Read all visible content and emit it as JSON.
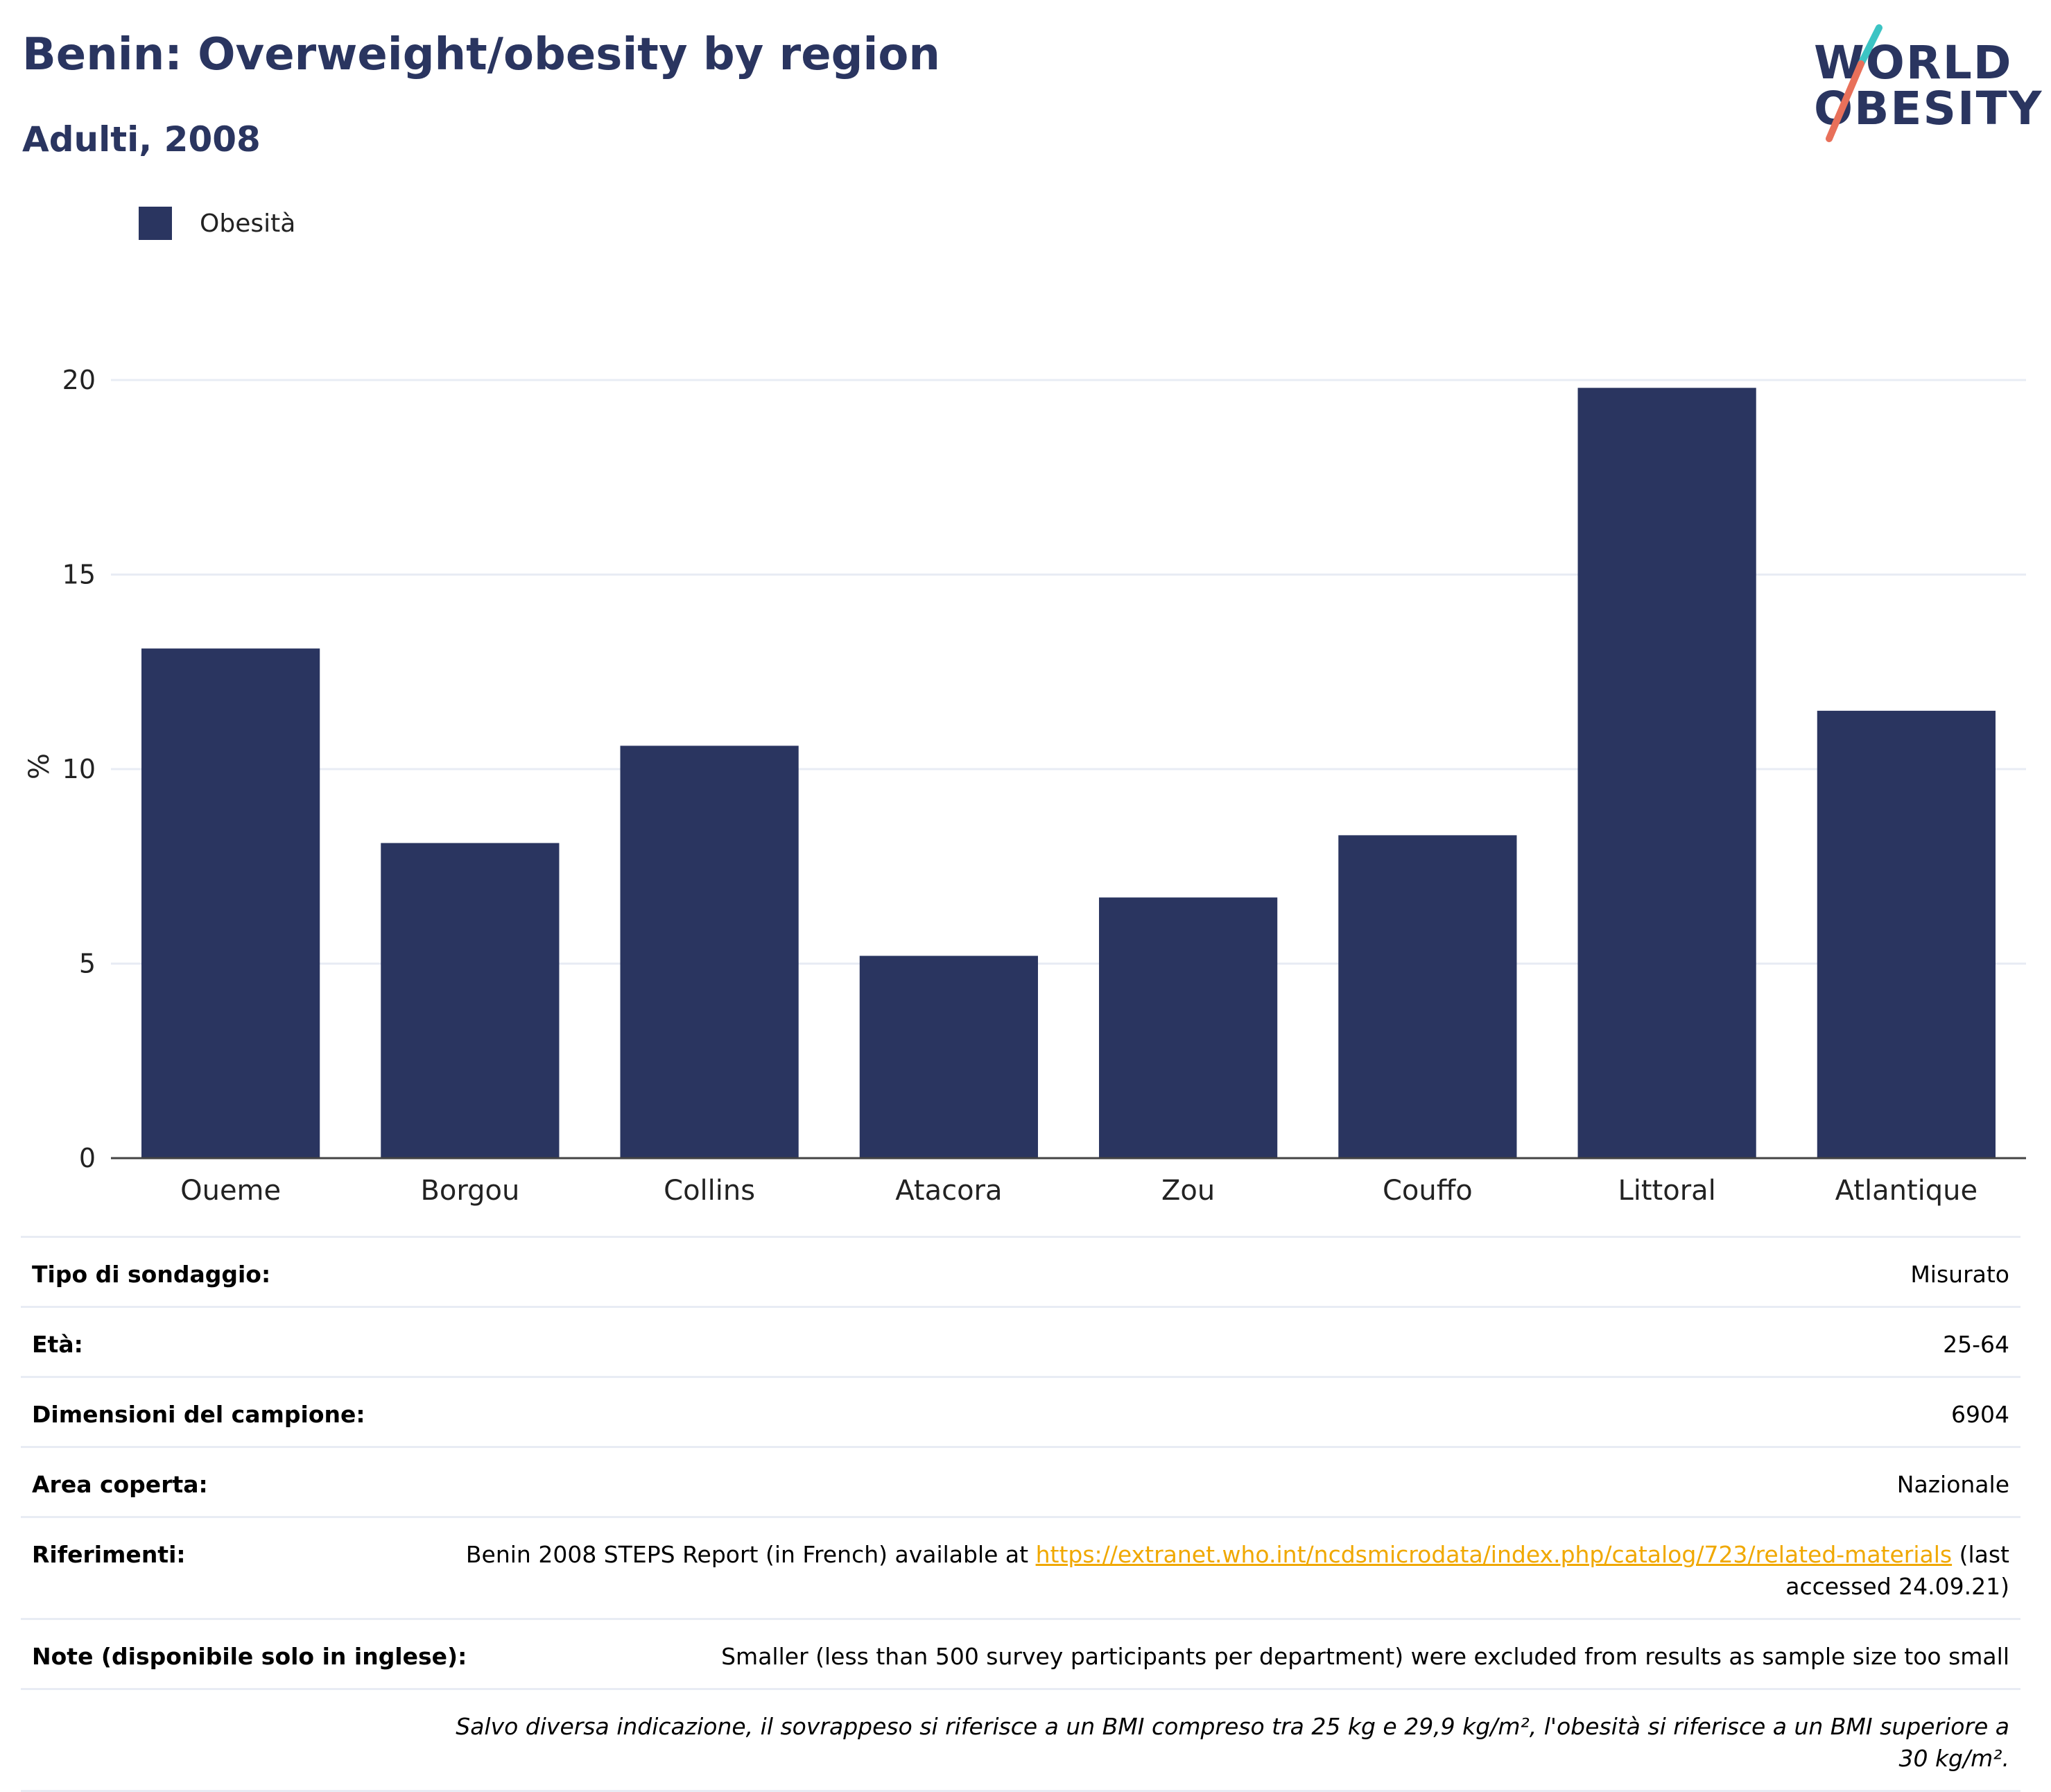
{
  "header": {
    "title": "Benin: Overweight/obesity by region",
    "subtitle": "Adulti, 2008"
  },
  "logo": {
    "line1": "WORLD",
    "line2": "OBESITY",
    "accent_colors": [
      "#3cc4c4",
      "#e8705a"
    ]
  },
  "colors": {
    "bar": "#2a3560",
    "grid": "#e8ecf4",
    "link": "#f0a800"
  },
  "chart_data": {
    "type": "bar",
    "title": "Benin: Overweight/obesity by region",
    "subtitle": "Adulti, 2008",
    "xlabel": "",
    "ylabel": "%",
    "ylim": [
      0,
      20.5
    ],
    "yticks": [
      0,
      5,
      10,
      15,
      20
    ],
    "categories": [
      "Oueme",
      "Borgou",
      "Collins",
      "Atacora",
      "Zou",
      "Couffo",
      "Littoral",
      "Atlantique"
    ],
    "series": [
      {
        "name": "Obesità",
        "values": [
          13.1,
          8.1,
          10.6,
          5.2,
          6.7,
          8.3,
          19.8,
          11.5
        ]
      }
    ],
    "legend_position": "top-left",
    "grid": true
  },
  "info": {
    "survey_type_label": "Tipo di sondaggio:",
    "survey_type_value": "Misurato",
    "age_label": "Età:",
    "age_value": "25-64",
    "sample_label": "Dimensioni del campione:",
    "sample_value": "6904",
    "area_label": "Area coperta:",
    "area_value": "Nazionale",
    "refs_label": "Riferimenti:",
    "refs_prefix": "Benin 2008 STEPS Report (in French) available at ",
    "refs_link": "https://extranet.who.int/ncdsmicrodata/index.php/catalog/723/related-materials",
    "refs_suffix": " (last accessed 24.09.21)",
    "notes_label": "Note (disponibile solo in inglese):",
    "notes_value": "Smaller (less than 500 survey participants per department) were excluded from results as sample size too small",
    "footnote": "Salvo diversa indicazione, il sovrappeso si riferisce a un BMI compreso tra 25 kg e 29,9 kg/m², l'obesità si riferisce a un BMI superiore a 30 kg/m²."
  }
}
